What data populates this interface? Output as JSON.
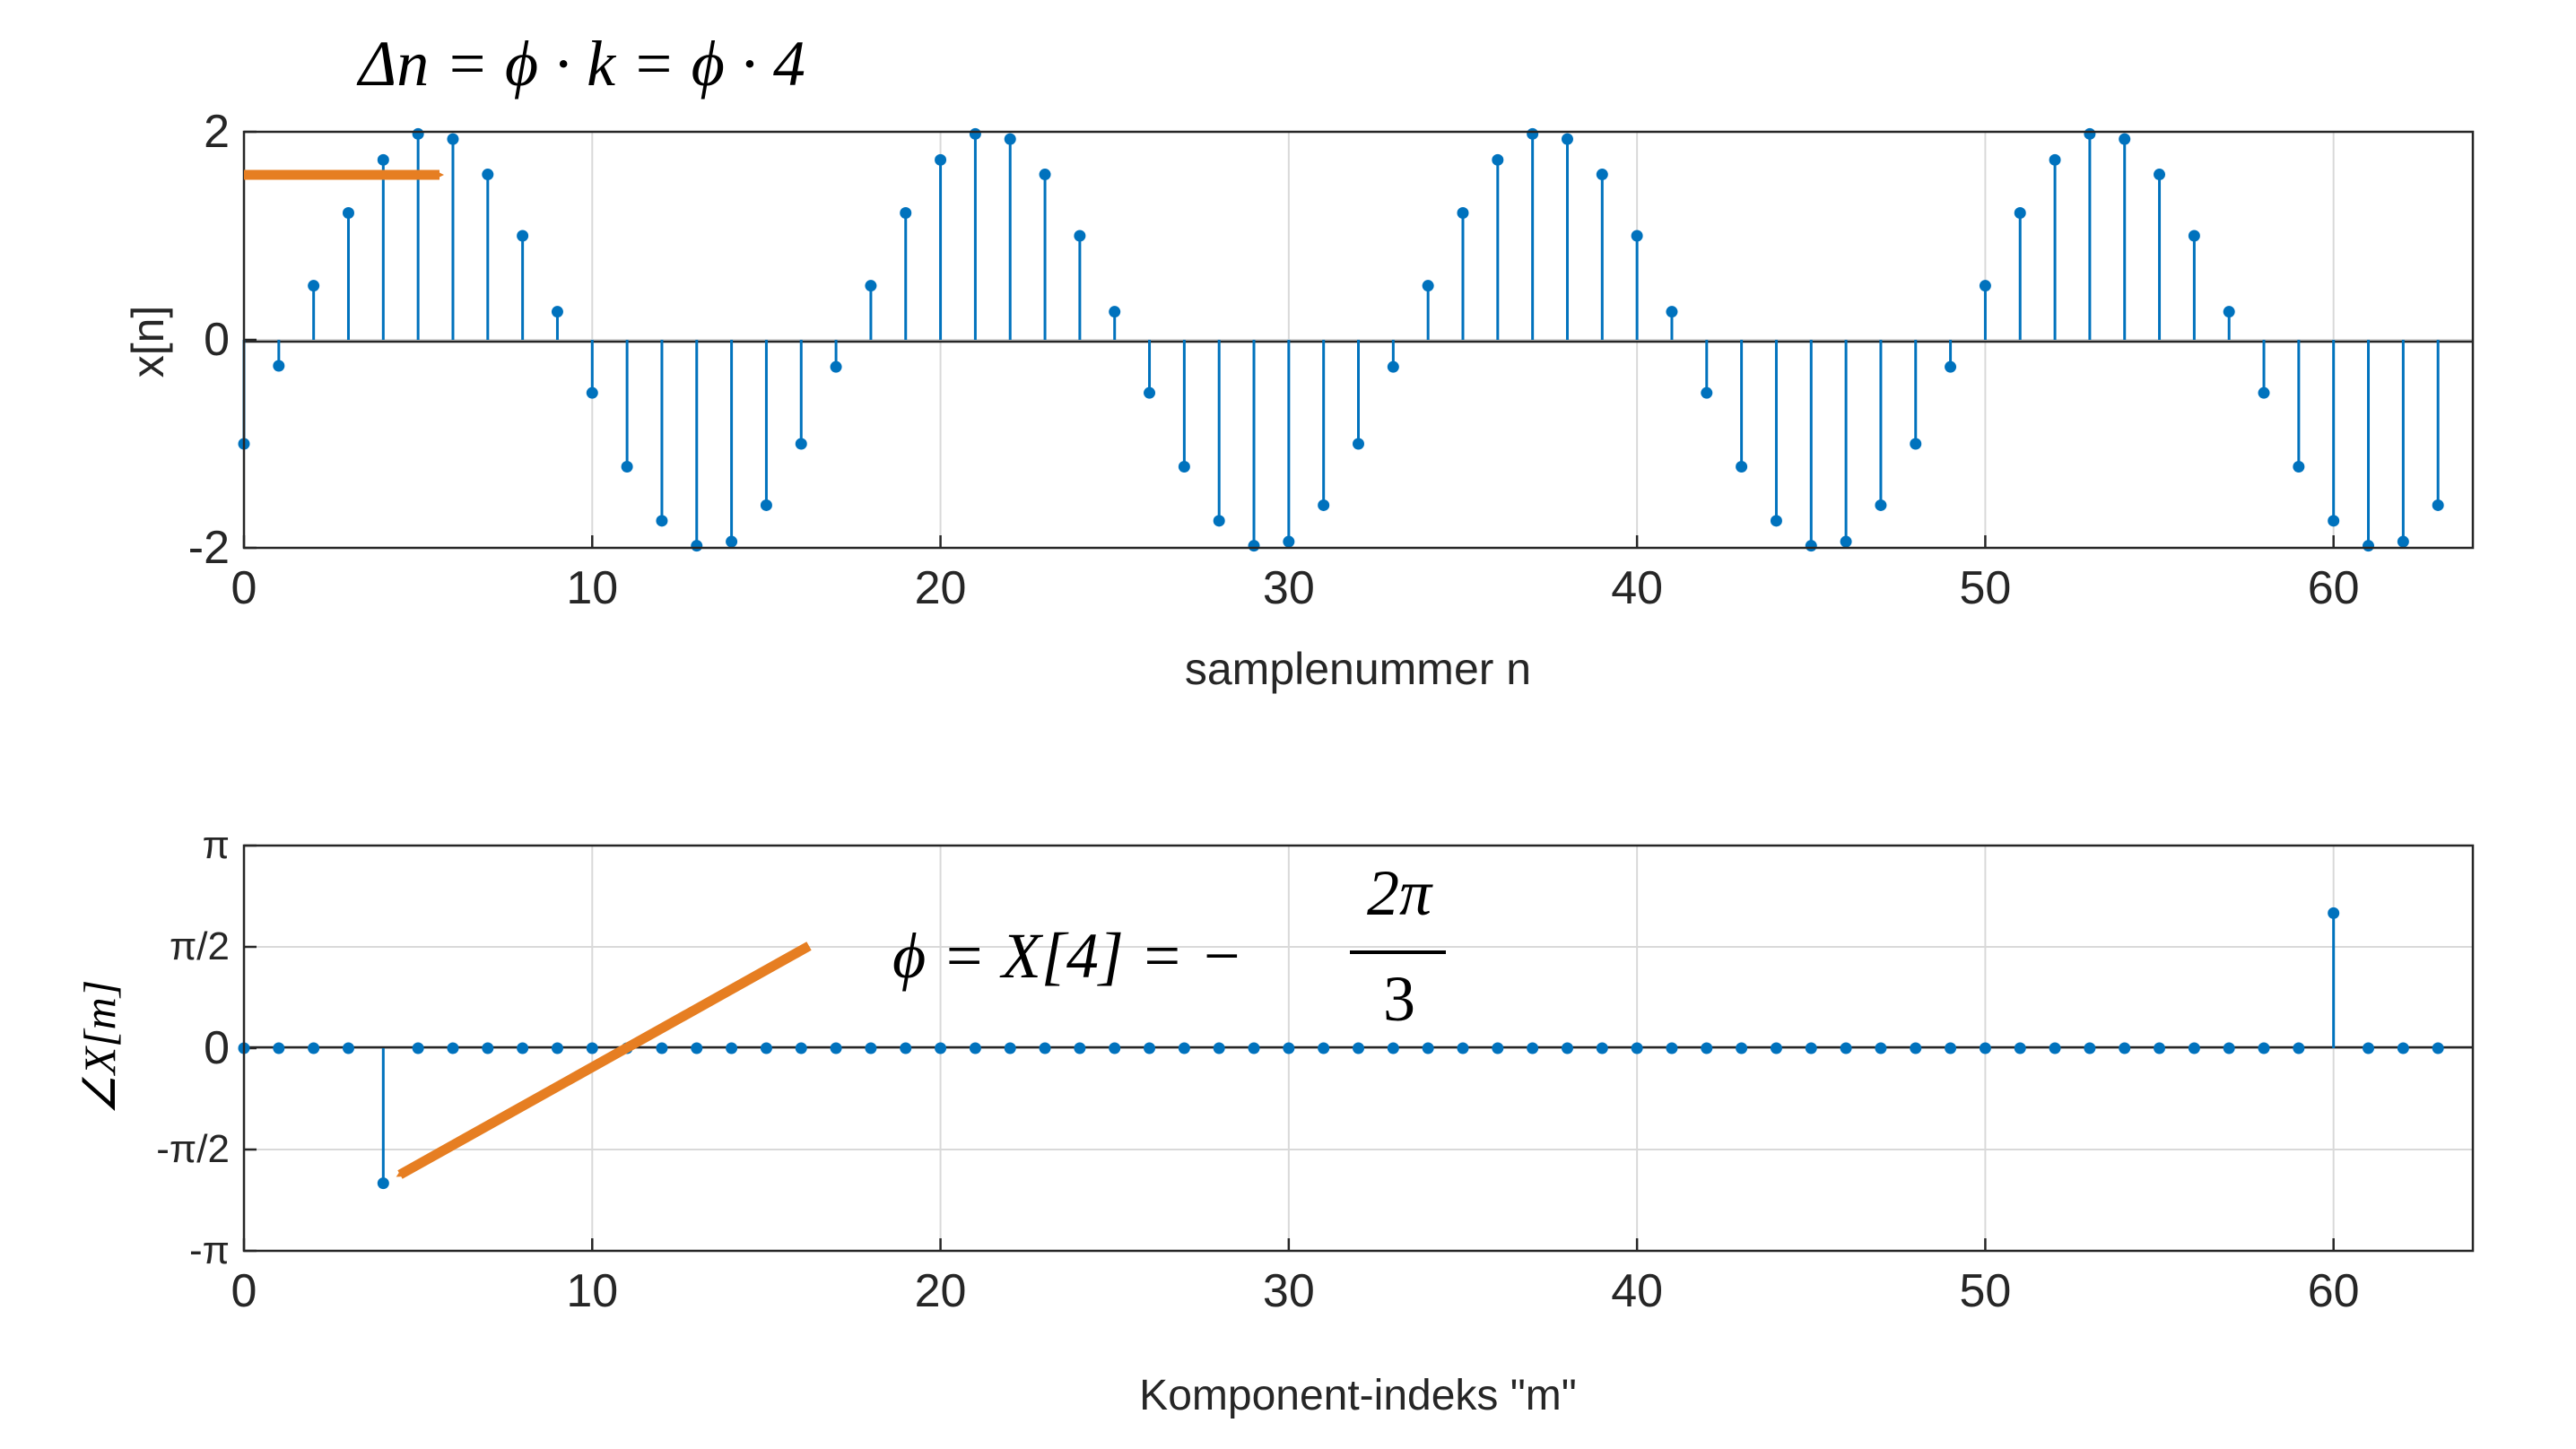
{
  "colors": {
    "stem": "#0072bd",
    "arrow": "#e67e22",
    "grid": "#d9d9d9",
    "axis": "#262626"
  },
  "annotations": {
    "top_formula": "Δn = ϕ · k = ϕ · 4",
    "bottom_formula": {
      "lhs": "ϕ = X[4] = −",
      "numerator": "2π",
      "denominator": "3"
    }
  },
  "chart_data": [
    {
      "type": "stem",
      "xlabel": "samplenummer n",
      "ylabel": "x[n]",
      "xlim": [
        0,
        64
      ],
      "ylim": [
        -2,
        2
      ],
      "xticks": [
        "0",
        "10",
        "20",
        "30",
        "40",
        "50",
        "60"
      ],
      "yticks": [
        "2",
        "0",
        "-2"
      ],
      "grid": true,
      "x": [
        0,
        1,
        2,
        3,
        4,
        5,
        6,
        7,
        8,
        9,
        10,
        11,
        12,
        13,
        14,
        15,
        16,
        17,
        18,
        19,
        20,
        21,
        22,
        23,
        24,
        25,
        26,
        27,
        28,
        29,
        30,
        31,
        32,
        33,
        34,
        35,
        36,
        37,
        38,
        39,
        40,
        41,
        42,
        43,
        44,
        45,
        46,
        47,
        48,
        49,
        50,
        51,
        52,
        53,
        54,
        55,
        56,
        57,
        58,
        59,
        60,
        61,
        62,
        63
      ],
      "values": [
        -1.0,
        -0.25,
        0.52,
        1.22,
        1.73,
        1.98,
        1.93,
        1.59,
        1.0,
        0.27,
        -0.51,
        -1.22,
        -1.74,
        -1.98,
        -1.94,
        -1.59,
        -1.0,
        -0.26,
        0.52,
        1.22,
        1.73,
        1.98,
        1.93,
        1.59,
        1.0,
        0.27,
        -0.51,
        -1.22,
        -1.74,
        -1.98,
        -1.94,
        -1.59,
        -1.0,
        -0.26,
        0.52,
        1.22,
        1.73,
        1.98,
        1.93,
        1.59,
        1.0,
        0.27,
        -0.51,
        -1.22,
        -1.74,
        -1.98,
        -1.94,
        -1.59,
        -1.0,
        -0.26,
        0.52,
        1.22,
        1.73,
        1.98,
        1.93,
        1.59,
        1.0,
        0.27,
        -0.51,
        -1.22,
        -1.74,
        -1.98,
        -1.94,
        -1.59
      ]
    },
    {
      "type": "stem",
      "xlabel": "Komponent-indeks \"m\"",
      "ylabel": "∠X[m]",
      "xlim": [
        0,
        64
      ],
      "ylim": [
        -3.14159,
        3.14159
      ],
      "xticks": [
        "0",
        "10",
        "20",
        "30",
        "40",
        "50",
        "60"
      ],
      "yticks": [
        "π",
        "π/2",
        "0",
        "-π/2",
        "-π"
      ],
      "grid": true,
      "x": [
        0,
        1,
        2,
        3,
        4,
        5,
        6,
        7,
        8,
        9,
        10,
        11,
        12,
        13,
        14,
        15,
        16,
        17,
        18,
        19,
        20,
        21,
        22,
        23,
        24,
        25,
        26,
        27,
        28,
        29,
        30,
        31,
        32,
        33,
        34,
        35,
        36,
        37,
        38,
        39,
        40,
        41,
        42,
        43,
        44,
        45,
        46,
        47,
        48,
        49,
        50,
        51,
        52,
        53,
        54,
        55,
        56,
        57,
        58,
        59,
        60,
        61,
        62,
        63
      ],
      "values": [
        0,
        0,
        0,
        0,
        -2.094,
        0,
        0,
        0,
        0,
        0,
        0,
        0,
        0,
        0,
        0,
        0,
        0,
        0,
        0,
        0,
        0,
        0,
        0,
        0,
        0,
        0,
        0,
        0,
        0,
        0,
        0,
        0,
        0,
        0,
        0,
        0,
        0,
        0,
        0,
        0,
        0,
        0,
        0,
        0,
        0,
        0,
        0,
        0,
        0,
        0,
        0,
        0,
        0,
        0,
        0,
        0,
        0,
        0,
        0,
        0,
        2.094,
        0,
        0,
        0
      ]
    }
  ]
}
